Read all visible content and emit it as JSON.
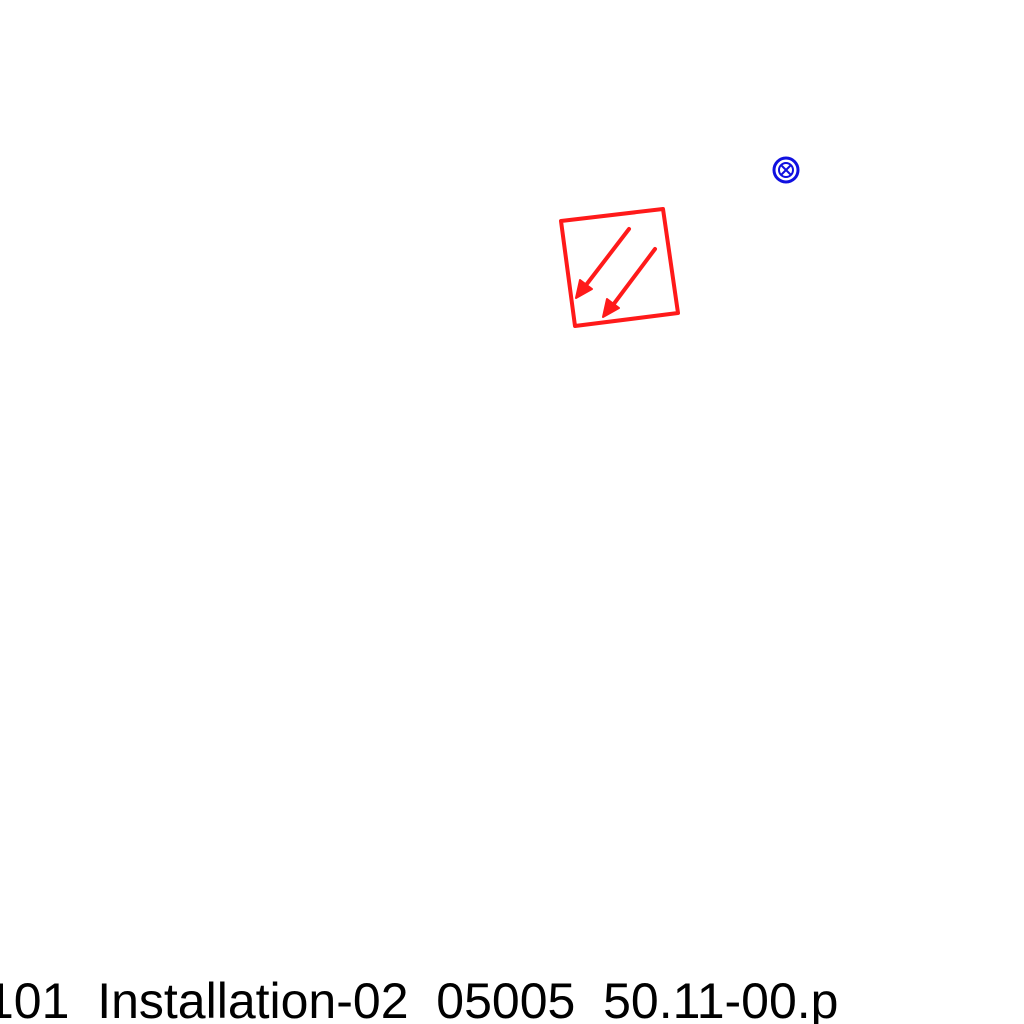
{
  "filename_caption": "101  Installation-02  05005  50.11-00.p",
  "symbols": [
    {
      "name": "diagonal-arrows-box-symbol",
      "color": "#ff0000"
    },
    {
      "name": "circled-x-marker-symbol",
      "color": "#0000ff"
    }
  ]
}
